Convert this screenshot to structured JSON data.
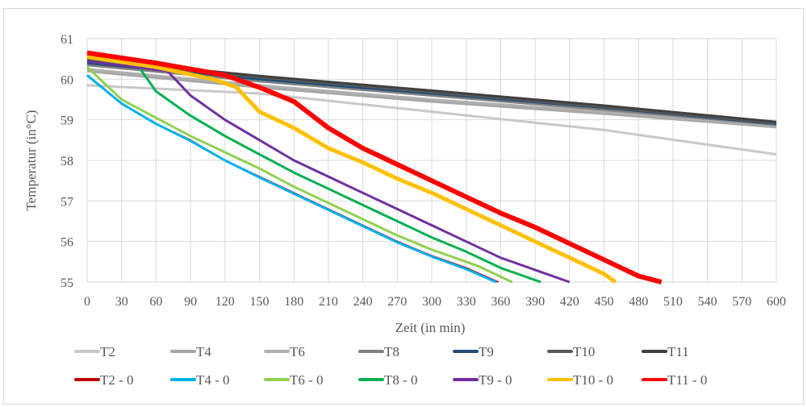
{
  "chart_data": {
    "type": "line",
    "title": "",
    "xlabel": "Zeit (in min)",
    "ylabel": "Temperatur (in°C)",
    "xlim": [
      0,
      600
    ],
    "ylim": [
      55,
      61
    ],
    "xticks": [
      0,
      30,
      60,
      90,
      120,
      150,
      180,
      210,
      240,
      270,
      300,
      330,
      360,
      390,
      420,
      450,
      480,
      510,
      540,
      570,
      600
    ],
    "yticks": [
      55,
      56,
      57,
      58,
      59,
      60,
      61
    ],
    "grid": true,
    "legend_position": "bottom",
    "series": [
      {
        "name": "T2",
        "color": "#c8c8c8",
        "width": 3,
        "x": [
          0,
          150,
          300,
          450,
          600
        ],
        "y": [
          59.85,
          59.65,
          59.2,
          58.75,
          58.15
        ]
      },
      {
        "name": "T4",
        "color": "#a6a6a6",
        "width": 3,
        "x": [
          0,
          150,
          300,
          450,
          600
        ],
        "y": [
          60.2,
          59.8,
          59.45,
          59.15,
          58.82
        ]
      },
      {
        "name": "T6",
        "color": "#b0b0b0",
        "width": 3,
        "x": [
          0,
          150,
          300,
          450,
          600
        ],
        "y": [
          60.25,
          59.85,
          59.5,
          59.2,
          58.85
        ]
      },
      {
        "name": "T8",
        "color": "#808080",
        "width": 3,
        "x": [
          0,
          150,
          300,
          450,
          600
        ],
        "y": [
          60.35,
          59.95,
          59.6,
          59.25,
          58.88
        ]
      },
      {
        "name": "T9",
        "color": "#1f4e79",
        "width": 3,
        "x": [
          0,
          150,
          300,
          450,
          600
        ],
        "y": [
          60.4,
          60.0,
          59.65,
          59.3,
          58.9
        ]
      },
      {
        "name": "T10",
        "color": "#595959",
        "width": 3,
        "x": [
          0,
          150,
          300,
          450,
          600
        ],
        "y": [
          60.45,
          60.05,
          59.68,
          59.32,
          58.92
        ]
      },
      {
        "name": "T11",
        "color": "#404040",
        "width": 3,
        "x": [
          0,
          150,
          300,
          450,
          600
        ],
        "y": [
          60.5,
          60.08,
          59.72,
          59.35,
          58.95
        ]
      },
      {
        "name": "T2 - 0",
        "color": "#c00000",
        "width": 2,
        "x": [
          0,
          30,
          60,
          90,
          120,
          150,
          180,
          210,
          240,
          270,
          300,
          330,
          358
        ],
        "y": [
          60.1,
          59.4,
          58.9,
          58.5,
          58.0,
          57.6,
          57.2,
          56.8,
          56.4,
          56.0,
          55.65,
          55.35,
          55.0
        ]
      },
      {
        "name": "T4 - 0",
        "color": "#00b0f0",
        "width": 3,
        "x": [
          0,
          30,
          60,
          90,
          120,
          150,
          180,
          210,
          240,
          270,
          300,
          330,
          356
        ],
        "y": [
          60.1,
          59.4,
          58.9,
          58.48,
          58.0,
          57.58,
          57.18,
          56.78,
          56.38,
          55.98,
          55.63,
          55.32,
          55.0
        ]
      },
      {
        "name": "T6 - 0",
        "color": "#92d050",
        "width": 3,
        "x": [
          0,
          30,
          60,
          90,
          120,
          150,
          180,
          210,
          240,
          270,
          300,
          340,
          370
        ],
        "y": [
          60.3,
          59.5,
          59.05,
          58.6,
          58.2,
          57.8,
          57.35,
          56.95,
          56.55,
          56.15,
          55.8,
          55.4,
          55.0
        ]
      },
      {
        "name": "T8 - 0",
        "color": "#00b050",
        "width": 3,
        "x": [
          0,
          45,
          60,
          90,
          120,
          150,
          180,
          210,
          240,
          270,
          300,
          330,
          360,
          395
        ],
        "y": [
          60.45,
          60.3,
          59.7,
          59.1,
          58.6,
          58.15,
          57.7,
          57.3,
          56.9,
          56.5,
          56.1,
          55.75,
          55.35,
          55.0
        ]
      },
      {
        "name": "T9 - 0",
        "color": "#7030a0",
        "width": 3,
        "x": [
          0,
          70,
          90,
          120,
          150,
          180,
          210,
          240,
          270,
          300,
          330,
          360,
          390,
          420
        ],
        "y": [
          60.45,
          60.2,
          59.6,
          59.0,
          58.5,
          58.0,
          57.6,
          57.2,
          56.8,
          56.4,
          56.0,
          55.6,
          55.3,
          55.0
        ]
      },
      {
        "name": "T10 - 0",
        "color": "#ffc000",
        "width": 5,
        "x": [
          0,
          60,
          110,
          130,
          150,
          180,
          210,
          240,
          270,
          300,
          330,
          360,
          390,
          420,
          450,
          460
        ],
        "y": [
          60.55,
          60.3,
          60.0,
          59.8,
          59.2,
          58.8,
          58.3,
          57.95,
          57.55,
          57.2,
          56.8,
          56.4,
          56.0,
          55.6,
          55.2,
          55.0
        ]
      },
      {
        "name": "T11 - 0",
        "color": "#ff0000",
        "width": 6,
        "x": [
          0,
          60,
          120,
          150,
          180,
          210,
          240,
          270,
          300,
          330,
          360,
          390,
          420,
          450,
          480,
          500
        ],
        "y": [
          60.65,
          60.4,
          60.1,
          59.8,
          59.45,
          58.8,
          58.3,
          57.9,
          57.5,
          57.1,
          56.7,
          56.35,
          55.95,
          55.55,
          55.15,
          55.0
        ]
      }
    ]
  }
}
